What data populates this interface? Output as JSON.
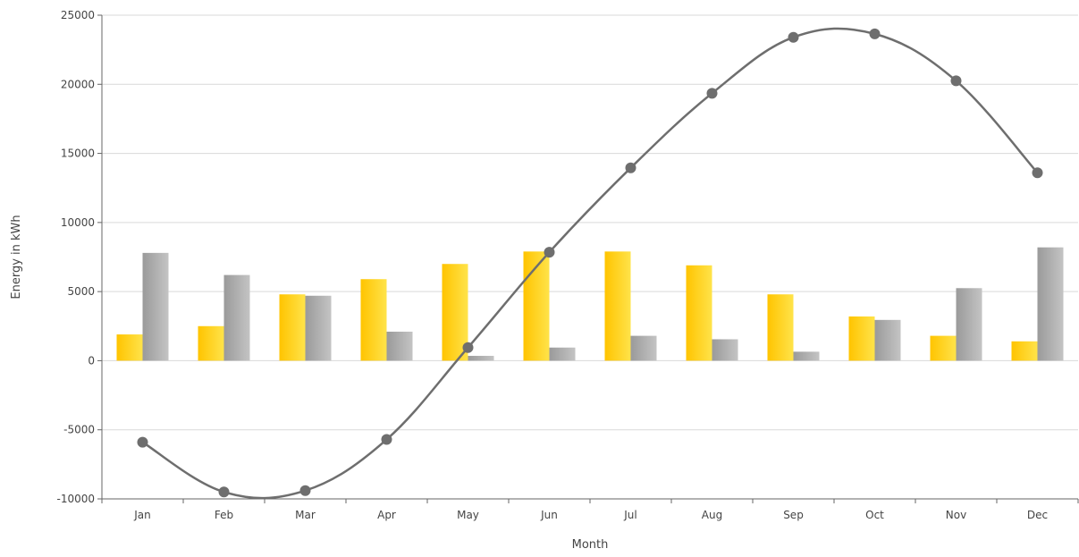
{
  "chart_data": {
    "type": "bar",
    "xlabel": "Month",
    "ylabel": "Energy in kWh",
    "ylim": [
      -10000,
      25000
    ],
    "yticks": [
      "25000",
      "20000",
      "15000",
      "10000",
      "5000",
      "0",
      "-5000",
      "-10000"
    ],
    "grid": true,
    "legend": "none",
    "categories": [
      "Jan",
      "Feb",
      "Mar",
      "Apr",
      "May",
      "Jun",
      "Jul",
      "Aug",
      "Sep",
      "Oct",
      "Nov",
      "Dec"
    ],
    "series": [
      {
        "type": "bar",
        "color": "#FFD200",
        "values": [
          1900,
          2500,
          4800,
          5900,
          7000,
          7900,
          7900,
          6900,
          4800,
          3200,
          1800,
          1400
        ]
      },
      {
        "type": "bar",
        "color": "#A8A8A8",
        "values": [
          7800,
          6200,
          4700,
          2100,
          350,
          950,
          1800,
          1550,
          650,
          2950,
          5250,
          8200
        ]
      },
      {
        "type": "line",
        "color": "#6E6E6E",
        "values": [
          -5900,
          -9500,
          -9400,
          -5700,
          950,
          7850,
          13950,
          19350,
          23400,
          23650,
          20250,
          13600
        ]
      }
    ]
  }
}
